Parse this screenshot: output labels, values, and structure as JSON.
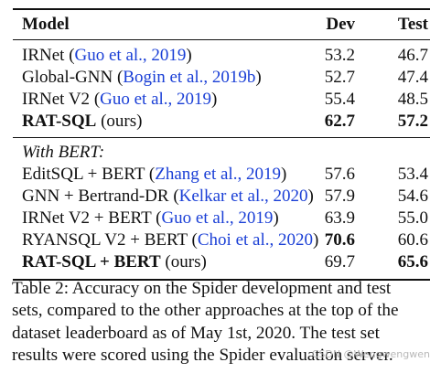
{
  "table": {
    "headers": {
      "model": "Model",
      "dev": "Dev",
      "test": "Test"
    },
    "group1": [
      {
        "name": "IRNet",
        "cite": "Guo et al., 2019",
        "dev": "53.2",
        "test": "46.7",
        "bold_name": false,
        "bold_dev": false,
        "bold_test": false
      },
      {
        "name": "Global-GNN",
        "cite": "Bogin et al., 2019b",
        "dev": "52.7",
        "test": "47.4",
        "bold_name": false,
        "bold_dev": false,
        "bold_test": false
      },
      {
        "name": "IRNet V2",
        "cite": "Guo et al., 2019",
        "dev": "55.4",
        "test": "48.5",
        "bold_name": false,
        "bold_dev": false,
        "bold_test": false
      },
      {
        "name": "RAT-SQL",
        "suffix": "(ours)",
        "dev": "62.7",
        "test": "57.2",
        "bold_name": true,
        "bold_dev": true,
        "bold_test": true
      }
    ],
    "group2_label": "With BERT:",
    "group2": [
      {
        "name": "EditSQL + BERT",
        "cite": "Zhang et al., 2019",
        "dev": "57.6",
        "test": "53.4",
        "bold_name": false,
        "bold_dev": false,
        "bold_test": false
      },
      {
        "name": "GNN + Bertrand-DR",
        "cite": "Kelkar et al., 2020",
        "dev": "57.9",
        "test": "54.6",
        "bold_name": false,
        "bold_dev": false,
        "bold_test": false
      },
      {
        "name": "IRNet V2 + BERT",
        "cite": "Guo et al., 2019",
        "dev": "63.9",
        "test": "55.0",
        "bold_name": false,
        "bold_dev": false,
        "bold_test": false
      },
      {
        "name": "RYANSQL V2 + BERT",
        "cite": "Choi et al., 2020",
        "dev": "70.6",
        "test": "60.6",
        "bold_name": false,
        "bold_dev": true,
        "bold_test": false
      },
      {
        "name": "RAT-SQL + BERT",
        "suffix": "(ours)",
        "dev": "69.7",
        "test": "65.6",
        "bold_name": true,
        "bold_dev": false,
        "bold_test": true
      }
    ]
  },
  "caption": {
    "lines": [
      "Table 2: Accuracy on the Spider development and test",
      "sets, compared to the other approaches at the top of the",
      "dataset leaderboard as of May 1st, 2020. The test set",
      "results were scored using the Spider evaluation server."
    ]
  },
  "watermark": "CSDN @Wengwengwen"
}
